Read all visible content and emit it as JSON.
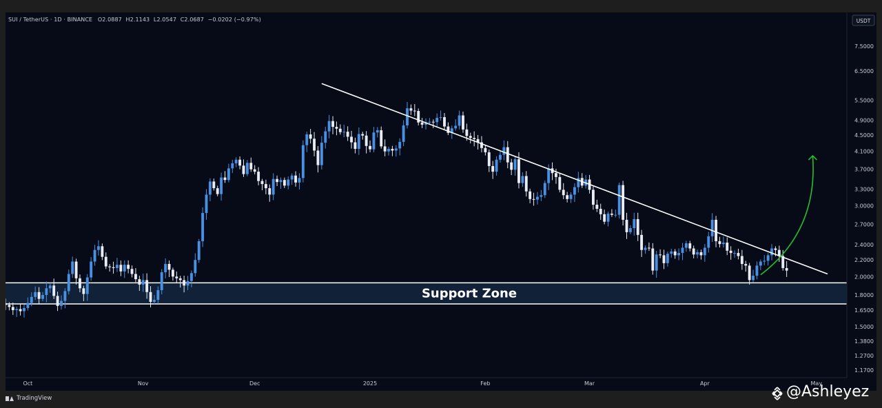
{
  "legend": {
    "symbol": "SUI / TetherUS · 1D · BINANCE",
    "o_label": "O",
    "o_value": "2.0887",
    "h_label": "H",
    "h_value": "2.1143",
    "l_label": "L",
    "l_value": "2.0547",
    "c_label": "C",
    "c_value": "2.0687",
    "change": "−0.0202 (−0.97%)"
  },
  "currency_badge": "USDT",
  "current_price_label": "2.0687",
  "zone_label": "Support Zone",
  "branding": {
    "tradingview": "TradingView",
    "watermark": "@Ashleyez"
  },
  "colors": {
    "background": "#070b18",
    "candle_up": "#4a90e2",
    "candle_down": "#e8ecf4",
    "zone_fill": "#112238",
    "trendline": "#ffffff",
    "arrow": "#22c12e",
    "axis_text": "#c9ccd4"
  },
  "chart_data": {
    "type": "candlestick",
    "symbol": "SUI/USDT",
    "interval": "1D",
    "y_scale": "log",
    "ylim": [
      1.12,
      9.1
    ],
    "xlim": [
      "2024-09-25",
      "2025-05-09"
    ],
    "y_ticks": [
      "1.1700",
      "1.2700",
      "1.3800",
      "1.5000",
      "1.6500",
      "1.8000",
      "2.0000",
      "2.2000",
      "2.4000",
      "2.7000",
      "3.0000",
      "3.3000",
      "3.7000",
      "4.1000",
      "4.5000",
      "4.9000",
      "5.5000",
      "6.5000",
      "7.5000"
    ],
    "x_ticks": [
      {
        "label": "Oct",
        "date": "2024-10-01"
      },
      {
        "label": "Nov",
        "date": "2024-11-01"
      },
      {
        "label": "Dec",
        "date": "2024-12-01"
      },
      {
        "label": "2025",
        "date": "2025-01-01"
      },
      {
        "label": "Feb",
        "date": "2025-02-01"
      },
      {
        "label": "Mar",
        "date": "2025-03-01"
      },
      {
        "label": "Apr",
        "date": "2025-04-01"
      },
      {
        "label": "May",
        "date": "2025-05-01"
      }
    ],
    "candles_start": "2024-09-25",
    "closes": [
      1.7,
      1.68,
      1.65,
      1.66,
      1.64,
      1.67,
      1.72,
      1.78,
      1.83,
      1.76,
      1.8,
      1.87,
      1.9,
      1.79,
      1.69,
      1.74,
      1.84,
      2.03,
      2.18,
      1.98,
      1.87,
      1.81,
      1.99,
      2.18,
      2.33,
      2.38,
      2.24,
      2.12,
      2.11,
      2.1,
      2.14,
      2.06,
      2.14,
      2.09,
      2.03,
      1.97,
      1.91,
      1.96,
      1.83,
      1.73,
      1.75,
      1.85,
      2.05,
      2.15,
      2.08,
      2.0,
      1.98,
      1.96,
      1.9,
      1.95,
      2.04,
      2.2,
      2.45,
      2.88,
      3.2,
      3.45,
      3.32,
      3.21,
      3.53,
      3.48,
      3.72,
      3.83,
      3.91,
      3.78,
      3.6,
      3.84,
      3.7,
      3.65,
      3.46,
      3.4,
      3.32,
      3.2,
      3.5,
      3.44,
      3.48,
      3.37,
      3.49,
      3.57,
      3.43,
      3.52,
      4.25,
      4.52,
      4.41,
      4.12,
      3.79,
      4.31,
      4.6,
      4.88,
      4.72,
      4.67,
      4.58,
      4.59,
      4.46,
      4.32,
      4.16,
      4.53,
      4.49,
      4.23,
      4.15,
      4.57,
      4.63,
      4.22,
      4.1,
      4.16,
      4.12,
      4.17,
      4.33,
      4.76,
      5.25,
      5.18,
      5.17,
      4.84,
      4.78,
      4.84,
      4.86,
      4.85,
      4.97,
      4.99,
      4.73,
      4.56,
      4.68,
      4.75,
      5.04,
      4.65,
      4.48,
      4.43,
      4.4,
      4.32,
      4.18,
      4.08,
      3.77,
      3.65,
      3.91,
      4.02,
      4.2,
      3.85,
      3.69,
      3.92,
      3.42,
      3.56,
      3.26,
      3.12,
      3.11,
      3.16,
      3.19,
      3.42,
      3.72,
      3.62,
      3.54,
      3.29,
      3.19,
      3.12,
      3.2,
      3.34,
      3.52,
      3.37,
      3.49,
      3.29,
      3.02,
      2.95,
      2.86,
      2.74,
      2.87,
      2.85,
      2.85,
      3.38,
      2.77,
      2.58,
      2.64,
      2.78,
      2.54,
      2.33,
      2.36,
      2.35,
      2.07,
      2.27,
      2.26,
      2.16,
      2.28,
      2.31,
      2.26,
      2.29,
      2.36,
      2.42,
      2.35,
      2.27,
      2.3,
      2.26,
      2.36,
      2.52,
      2.77,
      2.45,
      2.41,
      2.43,
      2.32,
      2.29,
      2.29,
      2.25,
      2.15,
      2.13,
      1.96,
      2.01,
      2.13,
      2.18,
      2.19,
      2.26,
      2.35,
      2.33,
      2.25,
      2.1,
      2.07
    ]
  }
}
